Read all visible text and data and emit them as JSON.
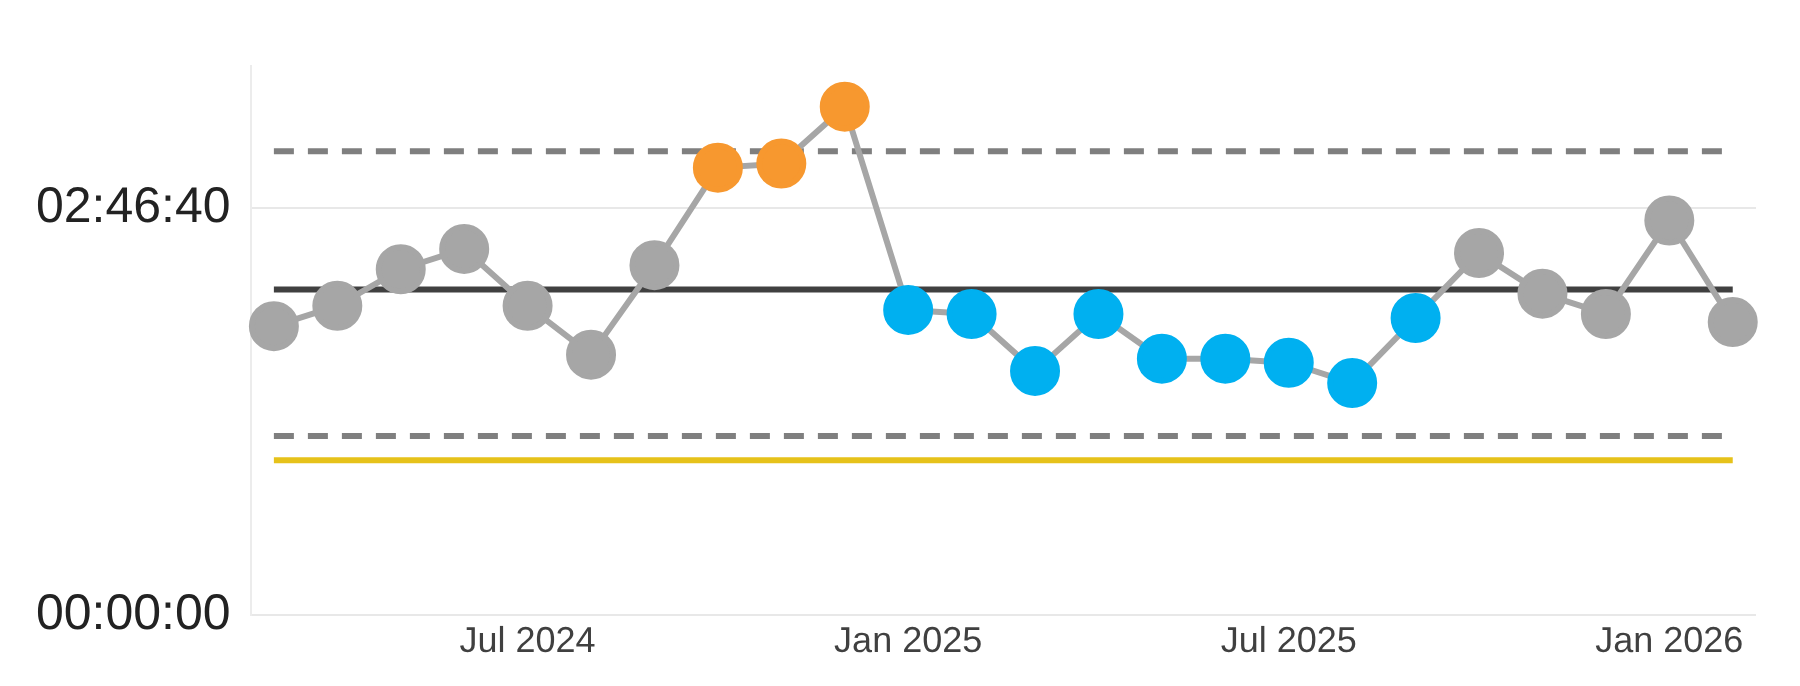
{
  "chart_data": {
    "type": "line",
    "x": [
      "2024-03",
      "2024-04",
      "2024-05",
      "2024-06",
      "2024-07",
      "2024-08",
      "2024-09",
      "2024-10",
      "2024-11",
      "2024-12",
      "2025-01",
      "2025-02",
      "2025-03",
      "2025-04",
      "2025-05",
      "2025-06",
      "2025-07",
      "2025-08",
      "2025-09",
      "2025-10",
      "2025-11",
      "2025-12",
      "2026-01",
      "2026-02"
    ],
    "series": [
      {
        "color": "#a6a6a6",
        "values": [
          7100,
          7600,
          8500,
          9000,
          7600,
          6400,
          8600,
          11000,
          11100,
          12500,
          7500,
          7400,
          6000,
          7400,
          6300,
          6300,
          6200,
          5700,
          7300,
          8900,
          7900,
          7400,
          9700,
          7200
        ],
        "colors": [
          "#a6a6a6",
          "#a6a6a6",
          "#a6a6a6",
          "#a6a6a6",
          "#a6a6a6",
          "#a6a6a6",
          "#a6a6a6",
          "#f7982f",
          "#f7982f",
          "#f7982f",
          "#00b0f0",
          "#00b0f0",
          "#00b0f0",
          "#00b0f0",
          "#00b0f0",
          "#00b0f0",
          "#00b0f0",
          "#00b0f0",
          "#00b0f0",
          "#a6a6a6",
          "#a6a6a6",
          "#a6a6a6",
          "#a6a6a6",
          "#a6a6a6"
        ]
      }
    ],
    "xlim": [
      "2024-02-20",
      "2026-02-12"
    ],
    "xticks": [
      {
        "value": "2024-07",
        "label": "Jul 2024"
      },
      {
        "value": "2025-01",
        "label": "Jan 2025"
      },
      {
        "value": "2025-07",
        "label": "Jul 2025"
      },
      {
        "value": "2026-01",
        "label": "Jan 2026"
      }
    ],
    "ylim": [
      0,
      13500
    ],
    "yticks": [
      {
        "value": 0,
        "label": "00:00:00"
      },
      {
        "value": 10000,
        "label": "02:46:40"
      }
    ],
    "ref_lines": [
      {
        "axis": "y",
        "value": 8000,
        "color": "#404040",
        "line_style": "solid"
      },
      {
        "axis": "y",
        "value": 11400,
        "color": "#7f7f7f",
        "line_style": "dashed"
      },
      {
        "axis": "y",
        "value": 4400,
        "color": "#7f7f7f",
        "line_style": "dashed"
      },
      {
        "axis": "y",
        "value": 3800,
        "color": "#e6c21a",
        "line_style": "solid"
      }
    ],
    "grid": "y",
    "marker": "circle",
    "line_style": "solid",
    "legend": false
  }
}
